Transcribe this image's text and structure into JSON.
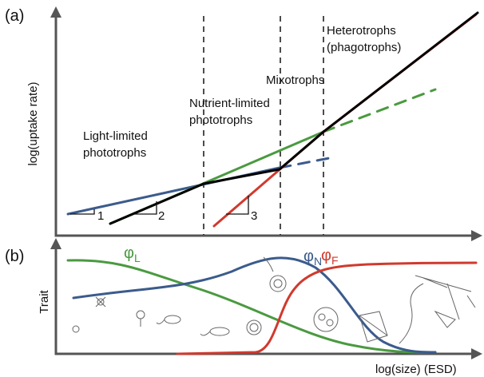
{
  "panel_a": {
    "label": "(a)",
    "y_axis_label": "log(uptake rate)",
    "regions": [
      {
        "lines": [
          "Light-limited",
          "phototrophs"
        ]
      },
      {
        "lines": [
          "Nutrient-limited",
          "phototrophs"
        ]
      },
      {
        "lines": [
          "Mixotrophs"
        ]
      },
      {
        "lines": [
          "Heterotrophs",
          "(phagotrophs)"
        ]
      }
    ],
    "slopes": [
      "1",
      "2",
      "3"
    ]
  },
  "panel_b": {
    "label": "(b)",
    "y_axis_label": "Trait",
    "traits": [
      {
        "symbol": "φ",
        "subscript": "L"
      },
      {
        "symbol": "φ",
        "subscript": "N"
      },
      {
        "symbol": "φ",
        "subscript": "F"
      }
    ],
    "x_axis_label": "log(size) (ESD)"
  }
}
